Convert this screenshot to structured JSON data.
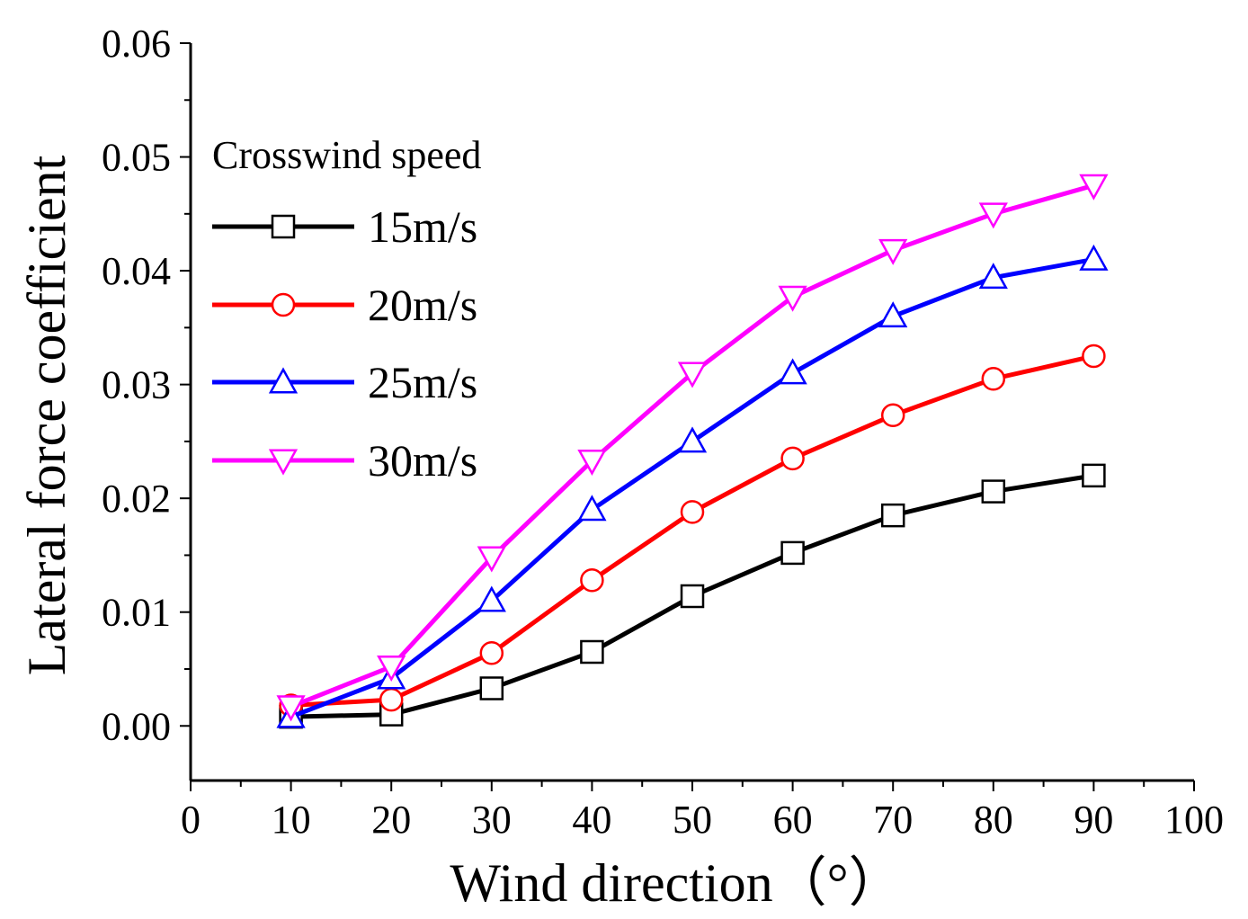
{
  "chart_data": {
    "type": "line",
    "title": "",
    "xlabel": "Wind direction（°）",
    "ylabel": "Lateral force coefficient",
    "xlim": [
      0,
      100
    ],
    "ylim": [
      -0.0048,
      0.06
    ],
    "xticks": [
      0,
      10,
      20,
      30,
      40,
      50,
      60,
      70,
      80,
      90,
      100
    ],
    "xtick_labels": [
      "0",
      "10",
      "20",
      "30",
      "40",
      "50",
      "60",
      "70",
      "80",
      "90",
      "100"
    ],
    "yticks": [
      0.0,
      0.01,
      0.02,
      0.03,
      0.04,
      0.05,
      0.06
    ],
    "ytick_labels": [
      "0.00",
      "0.01",
      "0.02",
      "0.03",
      "0.04",
      "0.05",
      "0.06"
    ],
    "grid": false,
    "legend_title": "Crosswind speed",
    "legend_position": "top-left",
    "x": [
      10,
      20,
      30,
      40,
      50,
      60,
      70,
      80,
      90
    ],
    "series": [
      {
        "name": "15m/s",
        "color": "#000000",
        "marker": "square",
        "values": [
          0.0008,
          0.001,
          0.0033,
          0.0065,
          0.0114,
          0.0152,
          0.0185,
          0.0206,
          0.022
        ]
      },
      {
        "name": "20m/s",
        "color": "#ff0000",
        "marker": "circle",
        "values": [
          0.0018,
          0.0023,
          0.0064,
          0.0128,
          0.0188,
          0.0235,
          0.0273,
          0.0305,
          0.0325
        ]
      },
      {
        "name": "25m/s",
        "color": "#0000ff",
        "marker": "triangle-up",
        "values": [
          0.0008,
          0.0042,
          0.011,
          0.019,
          0.025,
          0.031,
          0.036,
          0.0394,
          0.041
        ]
      },
      {
        "name": "30m/s",
        "color": "#ff00ff",
        "marker": "triangle-down",
        "values": [
          0.0017,
          0.0052,
          0.0148,
          0.0233,
          0.031,
          0.0377,
          0.0418,
          0.045,
          0.0475
        ]
      }
    ]
  }
}
